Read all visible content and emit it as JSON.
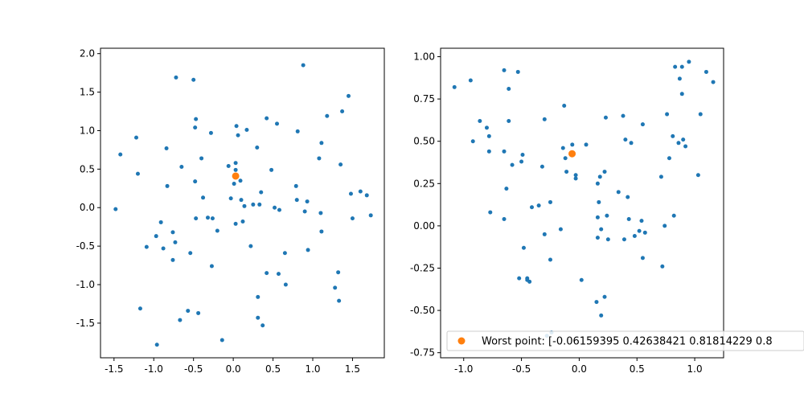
{
  "chart_data": [
    {
      "type": "scatter",
      "title": "",
      "xlabel": "",
      "ylabel": "",
      "xlim": [
        -1.67,
        1.9
      ],
      "ylim": [
        -1.95,
        2.07
      ],
      "xticks": [
        "-1.5",
        "-1.0",
        "-0.5",
        "0.0",
        "0.5",
        "1.0",
        "1.5"
      ],
      "xtick_values": [
        -1.5,
        -1.0,
        -0.5,
        0.0,
        0.5,
        1.0,
        1.5
      ],
      "yticks": [
        "2.0",
        "1.5",
        "1.0",
        "0.5",
        "0.0",
        "-0.5",
        "-1.0",
        "-1.5"
      ],
      "ytick_values": [
        2.0,
        1.5,
        1.0,
        0.5,
        0.0,
        -0.5,
        -1.0,
        -1.5
      ],
      "grid": false,
      "series": [
        {
          "color": "#1f77b4",
          "points": [
            [
              -1.48,
              -0.02
            ],
            [
              -1.42,
              0.69
            ],
            [
              -1.22,
              0.91
            ],
            [
              -1.2,
              0.44
            ],
            [
              -1.17,
              -1.31
            ],
            [
              -1.09,
              -0.51
            ],
            [
              -0.97,
              -0.37
            ],
            [
              -0.96,
              -1.78
            ],
            [
              -0.91,
              -0.19
            ],
            [
              -0.88,
              -0.53
            ],
            [
              -0.84,
              0.77
            ],
            [
              -0.83,
              0.28
            ],
            [
              -0.76,
              -0.32
            ],
            [
              -0.76,
              -0.68
            ],
            [
              -0.73,
              -0.45
            ],
            [
              -0.72,
              1.69
            ],
            [
              -0.67,
              -1.46
            ],
            [
              -0.65,
              0.53
            ],
            [
              -0.57,
              -1.34
            ],
            [
              -0.54,
              -0.59
            ],
            [
              -0.5,
              1.66
            ],
            [
              -0.48,
              0.34
            ],
            [
              -0.48,
              1.04
            ],
            [
              -0.47,
              1.15
            ],
            [
              -0.47,
              -0.14
            ],
            [
              -0.44,
              -1.37
            ],
            [
              -0.4,
              0.64
            ],
            [
              -0.38,
              0.13
            ],
            [
              -0.32,
              -0.13
            ],
            [
              -0.28,
              0.97
            ],
            [
              -0.27,
              -0.76
            ],
            [
              -0.26,
              -0.14
            ],
            [
              -0.2,
              -0.3
            ],
            [
              -0.14,
              -1.72
            ],
            [
              -0.06,
              0.54
            ],
            [
              -0.03,
              0.12
            ],
            [
              0.01,
              0.31
            ],
            [
              0.03,
              0.58
            ],
            [
              0.03,
              0.49
            ],
            [
              0.03,
              -0.21
            ],
            [
              0.04,
              1.06
            ],
            [
              0.06,
              0.94
            ],
            [
              0.09,
              0.35
            ],
            [
              0.1,
              0.1
            ],
            [
              0.12,
              -0.18
            ],
            [
              0.14,
              0.02
            ],
            [
              0.17,
              1.01
            ],
            [
              0.22,
              -0.5
            ],
            [
              0.25,
              0.04
            ],
            [
              0.3,
              0.78
            ],
            [
              0.31,
              -1.16
            ],
            [
              0.31,
              -1.43
            ],
            [
              0.33,
              0.04
            ],
            [
              0.35,
              0.2
            ],
            [
              0.37,
              -1.53
            ],
            [
              0.42,
              -0.85
            ],
            [
              0.42,
              1.16
            ],
            [
              0.48,
              0.49
            ],
            [
              0.52,
              0.0
            ],
            [
              0.55,
              1.09
            ],
            [
              0.57,
              -0.86
            ],
            [
              0.58,
              -0.03
            ],
            [
              0.65,
              -0.59
            ],
            [
              0.66,
              -1.0
            ],
            [
              0.79,
              0.28
            ],
            [
              0.8,
              0.1
            ],
            [
              0.81,
              0.99
            ],
            [
              0.88,
              1.85
            ],
            [
              0.9,
              -0.05
            ],
            [
              0.93,
              0.08
            ],
            [
              0.94,
              -0.55
            ],
            [
              1.08,
              0.64
            ],
            [
              1.1,
              -0.07
            ],
            [
              1.11,
              0.84
            ],
            [
              1.11,
              -0.31
            ],
            [
              1.18,
              1.19
            ],
            [
              1.28,
              -1.04
            ],
            [
              1.32,
              -0.84
            ],
            [
              1.33,
              -1.21
            ],
            [
              1.35,
              0.56
            ],
            [
              1.37,
              1.25
            ],
            [
              1.45,
              1.45
            ],
            [
              1.48,
              0.18
            ],
            [
              1.5,
              -0.14
            ],
            [
              1.6,
              0.21
            ],
            [
              1.68,
              0.16
            ],
            [
              1.73,
              -0.1
            ]
          ]
        },
        {
          "color": "#ff7f0e",
          "points": [
            [
              0.03,
              0.41
            ]
          ]
        }
      ]
    },
    {
      "type": "scatter",
      "title": "",
      "xlabel": "",
      "ylabel": "",
      "xlim": [
        -1.2,
        1.25
      ],
      "ylim": [
        -0.78,
        1.05
      ],
      "xticks": [
        "-1.0",
        "-0.5",
        "0.0",
        "0.5",
        "1.0"
      ],
      "xtick_values": [
        -1.0,
        -0.5,
        0.0,
        0.5,
        1.0
      ],
      "yticks": [
        "1.00",
        "0.75",
        "0.50",
        "0.25",
        "0.00",
        "-0.25",
        "-0.50",
        "-0.75"
      ],
      "ytick_values": [
        1.0,
        0.75,
        0.5,
        0.25,
        0.0,
        -0.25,
        -0.5,
        -0.75
      ],
      "grid": false,
      "legend_placement": "lower-right",
      "legend": [
        {
          "label": "Worst point: [-0.06159395  0.42638421  0.81814229  0.8",
          "color": "#ff7f0e"
        }
      ],
      "series": [
        {
          "color": "#1f77b4",
          "points": [
            [
              -1.08,
              0.82
            ],
            [
              -0.94,
              0.86
            ],
            [
              -0.92,
              0.5
            ],
            [
              -0.86,
              0.62
            ],
            [
              -0.8,
              0.58
            ],
            [
              -0.78,
              0.53
            ],
            [
              -0.78,
              0.44
            ],
            [
              -0.77,
              0.08
            ],
            [
              -0.65,
              0.92
            ],
            [
              -0.65,
              0.44
            ],
            [
              -0.65,
              0.04
            ],
            [
              -0.63,
              0.22
            ],
            [
              -0.61,
              0.81
            ],
            [
              -0.61,
              0.62
            ],
            [
              -0.58,
              0.36
            ],
            [
              -0.53,
              0.91
            ],
            [
              -0.52,
              -0.31
            ],
            [
              -0.5,
              0.38
            ],
            [
              -0.49,
              0.42
            ],
            [
              -0.48,
              -0.13
            ],
            [
              -0.45,
              -0.31
            ],
            [
              -0.45,
              -0.32
            ],
            [
              -0.43,
              -0.33
            ],
            [
              -0.41,
              0.11
            ],
            [
              -0.35,
              0.12
            ],
            [
              -0.32,
              0.35
            ],
            [
              -0.3,
              0.63
            ],
            [
              -0.3,
              -0.05
            ],
            [
              -0.28,
              -0.65
            ],
            [
              -0.25,
              -0.2
            ],
            [
              -0.25,
              0.14
            ],
            [
              -0.24,
              -0.63
            ],
            [
              -0.16,
              -0.02
            ],
            [
              -0.14,
              0.46
            ],
            [
              -0.13,
              0.71
            ],
            [
              -0.12,
              0.4
            ],
            [
              -0.11,
              0.32
            ],
            [
              -0.06,
              0.48
            ],
            [
              -0.03,
              0.3
            ],
            [
              -0.03,
              0.28
            ],
            [
              0.02,
              -0.32
            ],
            [
              0.06,
              0.48
            ],
            [
              0.15,
              -0.45
            ],
            [
              0.16,
              0.05
            ],
            [
              0.16,
              0.25
            ],
            [
              0.16,
              -0.07
            ],
            [
              0.17,
              0.14
            ],
            [
              0.18,
              0.29
            ],
            [
              0.19,
              -0.02
            ],
            [
              0.19,
              -0.53
            ],
            [
              0.22,
              -0.42
            ],
            [
              0.22,
              0.32
            ],
            [
              0.23,
              0.64
            ],
            [
              0.24,
              0.06
            ],
            [
              0.25,
              -0.08
            ],
            [
              0.34,
              0.2
            ],
            [
              0.38,
              0.65
            ],
            [
              0.39,
              -0.08
            ],
            [
              0.4,
              0.51
            ],
            [
              0.42,
              0.17
            ],
            [
              0.43,
              0.04
            ],
            [
              0.45,
              0.49
            ],
            [
              0.48,
              -0.06
            ],
            [
              0.52,
              -0.03
            ],
            [
              0.54,
              0.03
            ],
            [
              0.55,
              -0.19
            ],
            [
              0.55,
              0.6
            ],
            [
              0.57,
              -0.04
            ],
            [
              0.71,
              0.29
            ],
            [
              0.72,
              -0.24
            ],
            [
              0.74,
              0.0
            ],
            [
              0.76,
              0.66
            ],
            [
              0.78,
              0.4
            ],
            [
              0.81,
              0.53
            ],
            [
              0.82,
              0.06
            ],
            [
              0.83,
              0.94
            ],
            [
              0.86,
              0.49
            ],
            [
              0.87,
              0.87
            ],
            [
              0.89,
              0.94
            ],
            [
              0.89,
              0.78
            ],
            [
              0.9,
              0.51
            ],
            [
              0.92,
              0.47
            ],
            [
              0.95,
              0.97
            ],
            [
              1.03,
              0.3
            ],
            [
              1.05,
              0.66
            ],
            [
              1.1,
              0.91
            ],
            [
              1.16,
              0.85
            ]
          ]
        },
        {
          "color": "#ff7f0e",
          "points": [
            [
              -0.0616,
              0.4264
            ]
          ]
        }
      ]
    }
  ]
}
